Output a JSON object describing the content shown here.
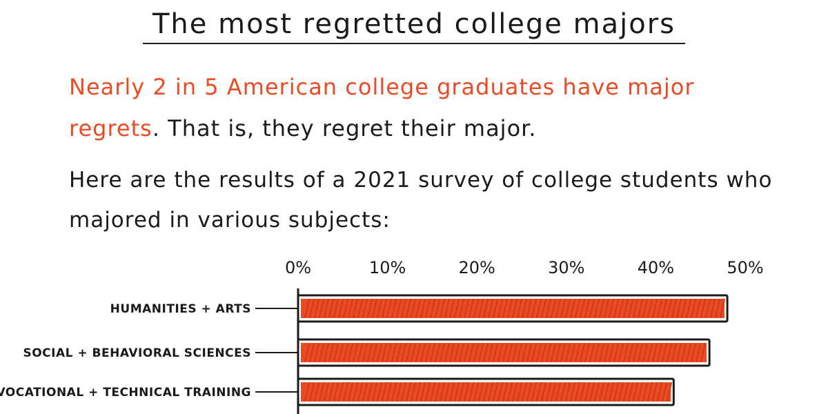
{
  "title": "The most regretted college majors",
  "intro": {
    "highlight": "Nearly 2 in 5 American college graduates have major regrets",
    "rest": ". That is, they regret their major."
  },
  "survey_text": "Here are the results of a 2021 survey of college students who majored in various subjects:",
  "colors": {
    "bar": "#ea4a24",
    "highlight": "#ea4a24",
    "ink": "#1a1a1a"
  },
  "chart_data": {
    "type": "bar",
    "orientation": "horizontal",
    "categories": [
      "HUMANITIES + ARTS",
      "SOCIAL + BEHAVIORAL SCIENCES",
      "VOCATIONAL + TECHNICAL TRAINING"
    ],
    "values": [
      48,
      46,
      42
    ],
    "unit": "%",
    "tick_labels": [
      "0%",
      "10%",
      "20%",
      "30%",
      "40%",
      "50%"
    ],
    "xlim": [
      0,
      50
    ],
    "xaxis_position": "top",
    "grid": false
  }
}
